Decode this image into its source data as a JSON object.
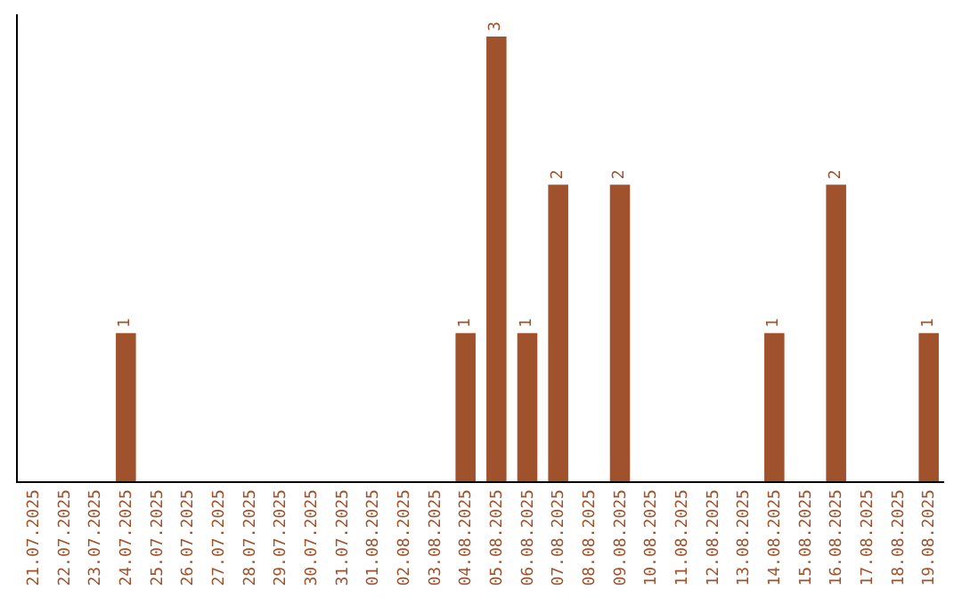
{
  "chart_data": {
    "type": "bar",
    "categories": [
      "21.07.2025",
      "22.07.2025",
      "23.07.2025",
      "24.07.2025",
      "25.07.2025",
      "26.07.2025",
      "27.07.2025",
      "28.07.2025",
      "29.07.2025",
      "30.07.2025",
      "31.07.2025",
      "01.08.2025",
      "02.08.2025",
      "03.08.2025",
      "04.08.2025",
      "05.08.2025",
      "06.08.2025",
      "07.08.2025",
      "08.08.2025",
      "09.08.2025",
      "10.08.2025",
      "11.08.2025",
      "12.08.2025",
      "13.08.2025",
      "14.08.2025",
      "15.08.2025",
      "16.08.2025",
      "17.08.2025",
      "18.08.2025",
      "19.08.2025"
    ],
    "values": [
      0,
      0,
      0,
      1,
      0,
      0,
      0,
      0,
      0,
      0,
      0,
      0,
      0,
      0,
      1,
      3,
      1,
      2,
      0,
      2,
      0,
      0,
      0,
      0,
      1,
      0,
      2,
      0,
      0,
      1
    ],
    "value_labels": [
      null,
      null,
      null,
      "1",
      null,
      null,
      null,
      null,
      null,
      null,
      null,
      null,
      null,
      null,
      "1",
      "3",
      "1",
      "2",
      null,
      "2",
      null,
      null,
      null,
      null,
      "1",
      null,
      "2",
      null,
      null,
      "1"
    ],
    "color": "#a0522d",
    "ylim": [
      0,
      3.15
    ],
    "tick_labels": "x",
    "legend": false
  }
}
